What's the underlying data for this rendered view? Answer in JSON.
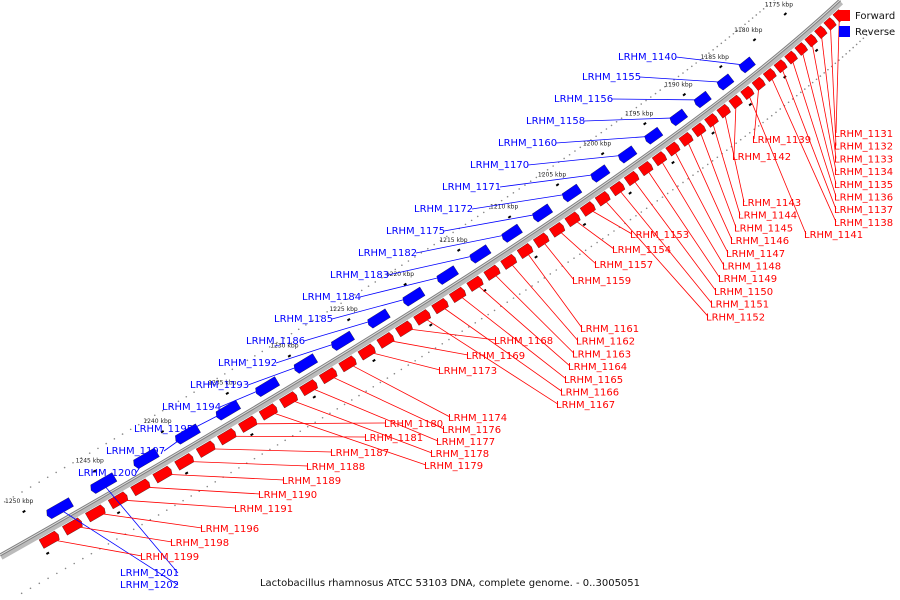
{
  "caption": "Lactobacillus rhamnosus ATCC 53103 DNA, complete genome. - 0..3005051",
  "legend": [
    {
      "label": "Forward",
      "color": "#ff0000"
    },
    {
      "label": "Reverse",
      "color": "#0000ff"
    }
  ],
  "colors": {
    "forward": "#ff0000",
    "reverse": "#0000ff",
    "backbone": "#808080"
  },
  "ticks": [
    "1175 kbp",
    "1180 kbp",
    "1185 kbp",
    "1190 kbp",
    "1195 kbp",
    "1200 kbp",
    "1205 kbp",
    "1210 kbp",
    "1215 kbp",
    "1220 kbp",
    "1225 kbp",
    "1230 kbp",
    "1235 kbp",
    "1240 kbp",
    "1245 kbp",
    "1250 kbp"
  ],
  "reverse_genes": [
    "LRHM_1140",
    "LRHM_1155",
    "LRHM_1156",
    "LRHM_1158",
    "LRHM_1160",
    "LRHM_1170",
    "LRHM_1171",
    "LRHM_1172",
    "LRHM_1175",
    "LRHM_1182",
    "LRHM_1183",
    "LRHM_1184",
    "LRHM_1185",
    "LRHM_1186",
    "LRHM_1192",
    "LRHM_1193",
    "LRHM_1194",
    "LRHM_1195",
    "LRHM_1197",
    "LRHM_1200",
    "LRHM_1201",
    "LRHM_1202"
  ],
  "forward_genes": [
    "LRHM_1131",
    "LRHM_1132",
    "LRHM_1133",
    "LRHM_1134",
    "LRHM_1135",
    "LRHM_1136",
    "LRHM_1137",
    "LRHM_1138",
    "LRHM_1139",
    "LRHM_1141",
    "LRHM_1142",
    "LRHM_1143",
    "LRHM_1144",
    "LRHM_1145",
    "LRHM_1146",
    "LRHM_1147",
    "LRHM_1148",
    "LRHM_1149",
    "LRHM_1150",
    "LRHM_1151",
    "LRHM_1152",
    "LRHM_1153",
    "LRHM_1154",
    "LRHM_1157",
    "LRHM_1159",
    "LRHM_1161",
    "LRHM_1162",
    "LRHM_1163",
    "LRHM_1164",
    "LRHM_1165",
    "LRHM_1166",
    "LRHM_1167",
    "LRHM_1168",
    "LRHM_1169",
    "LRHM_1173",
    "LRHM_1174",
    "LRHM_1176",
    "LRHM_1177",
    "LRHM_1178",
    "LRHM_1179",
    "LRHM_1180",
    "LRHM_1181",
    "LRHM_1187",
    "LRHM_1188",
    "LRHM_1189",
    "LRHM_1190",
    "LRHM_1191",
    "LRHM_1196",
    "LRHM_1198",
    "LRHM_1199"
  ]
}
